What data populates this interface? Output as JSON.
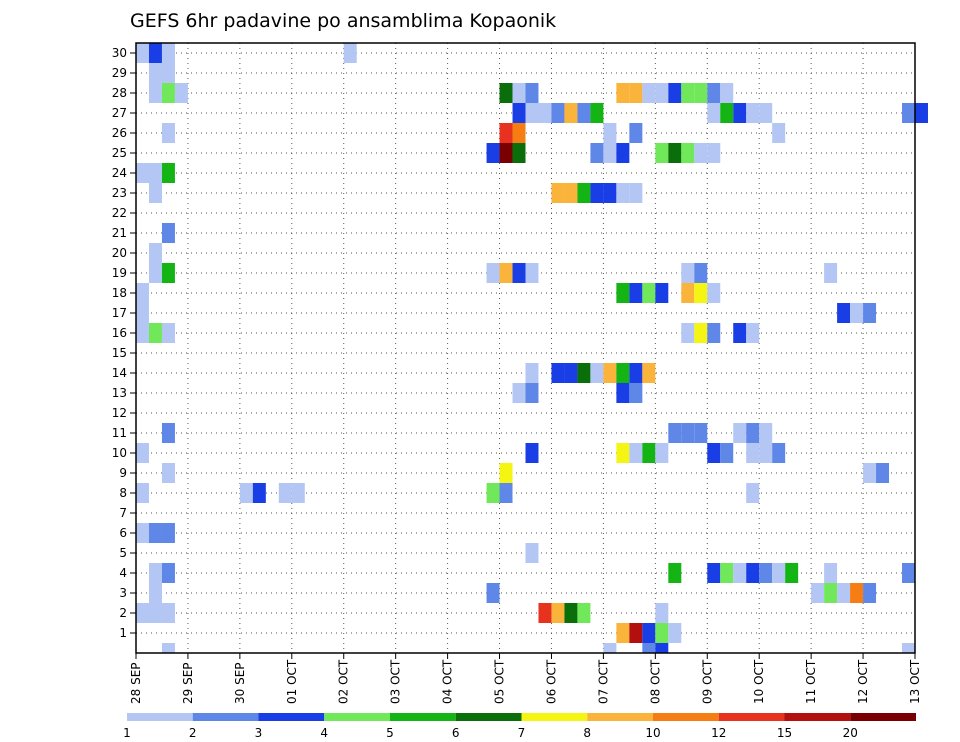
{
  "chart_data": {
    "type": "heatmap",
    "title": "GEFS 6hr padavine po ansamblima Kopaonik",
    "xlabel": "",
    "ylabel": "",
    "x_tick_labels": [
      "28 SEP",
      "29 SEP",
      "30 SEP",
      "01 OCT",
      "02 OCT",
      "03 OCT",
      "04 OCT",
      "05 OCT",
      "06 OCT",
      "07 OCT",
      "08 OCT",
      "09 OCT",
      "10 OCT",
      "11 OCT",
      "12 OCT",
      "13 OCT"
    ],
    "y_tick_labels": [
      "1",
      "2",
      "3",
      "4",
      "5",
      "6",
      "7",
      "8",
      "9",
      "10",
      "11",
      "12",
      "13",
      "14",
      "15",
      "16",
      "17",
      "18",
      "19",
      "20",
      "21",
      "22",
      "23",
      "24",
      "25",
      "26",
      "27",
      "28",
      "29",
      "30"
    ],
    "ylim": [
      0,
      30
    ],
    "x_range_days": [
      0,
      15
    ],
    "grid": true,
    "legend_position": "bottom",
    "levels": [
      "1",
      "2",
      "3",
      "4",
      "5",
      "6",
      "7",
      "8",
      "10",
      "12",
      "15",
      "20"
    ],
    "colors": [
      "#b4c6f4",
      "#5f87e8",
      "#1a3ee6",
      "#70e85a",
      "#14b414",
      "#0a6e0a",
      "#f5f514",
      "#fab43c",
      "#f57d14",
      "#e6321e",
      "#b40f0f",
      "#780000"
    ],
    "cells": [
      {
        "m": 30,
        "s": 0,
        "c": 1
      },
      {
        "m": 30,
        "s": 1,
        "c": 3
      },
      {
        "m": 30,
        "s": 2,
        "c": 1
      },
      {
        "m": 30,
        "s": 16,
        "c": 1
      },
      {
        "m": 29,
        "s": 1,
        "c": 1
      },
      {
        "m": 29,
        "s": 2,
        "c": 1
      },
      {
        "m": 28,
        "s": 1,
        "c": 1
      },
      {
        "m": 28,
        "s": 2,
        "c": 4
      },
      {
        "m": 28,
        "s": 3,
        "c": 1
      },
      {
        "m": 28,
        "s": 28,
        "c": 6
      },
      {
        "m": 28,
        "s": 29,
        "c": 1
      },
      {
        "m": 28,
        "s": 30,
        "c": 2
      },
      {
        "m": 28,
        "s": 37,
        "c": 8
      },
      {
        "m": 28,
        "s": 38,
        "c": 8
      },
      {
        "m": 28,
        "s": 39,
        "c": 1
      },
      {
        "m": 28,
        "s": 40,
        "c": 1
      },
      {
        "m": 28,
        "s": 41,
        "c": 3
      },
      {
        "m": 28,
        "s": 42,
        "c": 4
      },
      {
        "m": 28,
        "s": 43,
        "c": 4
      },
      {
        "m": 28,
        "s": 44,
        "c": 2
      },
      {
        "m": 28,
        "s": 45,
        "c": 1
      },
      {
        "m": 27,
        "s": 29,
        "c": 3
      },
      {
        "m": 27,
        "s": 30,
        "c": 1
      },
      {
        "m": 27,
        "s": 31,
        "c": 1
      },
      {
        "m": 27,
        "s": 32,
        "c": 2
      },
      {
        "m": 27,
        "s": 33,
        "c": 8
      },
      {
        "m": 27,
        "s": 34,
        "c": 2
      },
      {
        "m": 27,
        "s": 35,
        "c": 5
      },
      {
        "m": 27,
        "s": 44,
        "c": 1
      },
      {
        "m": 27,
        "s": 45,
        "c": 5
      },
      {
        "m": 27,
        "s": 46,
        "c": 3
      },
      {
        "m": 27,
        "s": 47,
        "c": 1
      },
      {
        "m": 27,
        "s": 48,
        "c": 1
      },
      {
        "m": 27,
        "s": 59,
        "c": 2
      },
      {
        "m": 27,
        "s": 60,
        "c": 3
      },
      {
        "m": 26,
        "s": 2,
        "c": 1
      },
      {
        "m": 26,
        "s": 28,
        "c": 10
      },
      {
        "m": 26,
        "s": 29,
        "c": 9
      },
      {
        "m": 26,
        "s": 36,
        "c": 1
      },
      {
        "m": 26,
        "s": 38,
        "c": 2
      },
      {
        "m": 26,
        "s": 49,
        "c": 1
      },
      {
        "m": 25,
        "s": 27,
        "c": 3
      },
      {
        "m": 25,
        "s": 28,
        "c": 12
      },
      {
        "m": 25,
        "s": 29,
        "c": 6
      },
      {
        "m": 25,
        "s": 35,
        "c": 2
      },
      {
        "m": 25,
        "s": 36,
        "c": 1
      },
      {
        "m": 25,
        "s": 37,
        "c": 3
      },
      {
        "m": 25,
        "s": 40,
        "c": 4
      },
      {
        "m": 25,
        "s": 41,
        "c": 6
      },
      {
        "m": 25,
        "s": 42,
        "c": 4
      },
      {
        "m": 25,
        "s": 43,
        "c": 1
      },
      {
        "m": 25,
        "s": 44,
        "c": 1
      },
      {
        "m": 24,
        "s": 0,
        "c": 1
      },
      {
        "m": 24,
        "s": 1,
        "c": 1
      },
      {
        "m": 24,
        "s": 2,
        "c": 5
      },
      {
        "m": 23,
        "s": 1,
        "c": 1
      },
      {
        "m": 23,
        "s": 32,
        "c": 8
      },
      {
        "m": 23,
        "s": 33,
        "c": 8
      },
      {
        "m": 23,
        "s": 34,
        "c": 5
      },
      {
        "m": 23,
        "s": 35,
        "c": 3
      },
      {
        "m": 23,
        "s": 36,
        "c": 3
      },
      {
        "m": 23,
        "s": 37,
        "c": 1
      },
      {
        "m": 23,
        "s": 38,
        "c": 1
      },
      {
        "m": 21,
        "s": 2,
        "c": 2
      },
      {
        "m": 20,
        "s": 1,
        "c": 1
      },
      {
        "m": 19,
        "s": 1,
        "c": 1
      },
      {
        "m": 19,
        "s": 2,
        "c": 5
      },
      {
        "m": 19,
        "s": 27,
        "c": 1
      },
      {
        "m": 19,
        "s": 28,
        "c": 8
      },
      {
        "m": 19,
        "s": 29,
        "c": 3
      },
      {
        "m": 19,
        "s": 30,
        "c": 1
      },
      {
        "m": 19,
        "s": 42,
        "c": 1
      },
      {
        "m": 19,
        "s": 43,
        "c": 2
      },
      {
        "m": 19,
        "s": 53,
        "c": 1
      },
      {
        "m": 18,
        "s": 0,
        "c": 1
      },
      {
        "m": 18,
        "s": 37,
        "c": 5
      },
      {
        "m": 18,
        "s": 38,
        "c": 3
      },
      {
        "m": 18,
        "s": 39,
        "c": 4
      },
      {
        "m": 18,
        "s": 40,
        "c": 3
      },
      {
        "m": 18,
        "s": 42,
        "c": 8
      },
      {
        "m": 18,
        "s": 43,
        "c": 7
      },
      {
        "m": 18,
        "s": 44,
        "c": 1
      },
      {
        "m": 17,
        "s": 0,
        "c": 1
      },
      {
        "m": 17,
        "s": 54,
        "c": 3
      },
      {
        "m": 17,
        "s": 55,
        "c": 1
      },
      {
        "m": 17,
        "s": 56,
        "c": 2
      },
      {
        "m": 16,
        "s": 0,
        "c": 1
      },
      {
        "m": 16,
        "s": 1,
        "c": 4
      },
      {
        "m": 16,
        "s": 2,
        "c": 1
      },
      {
        "m": 16,
        "s": 42,
        "c": 1
      },
      {
        "m": 16,
        "s": 43,
        "c": 7
      },
      {
        "m": 16,
        "s": 44,
        "c": 2
      },
      {
        "m": 16,
        "s": 46,
        "c": 3
      },
      {
        "m": 16,
        "s": 47,
        "c": 1
      },
      {
        "m": 14,
        "s": 30,
        "c": 1
      },
      {
        "m": 14,
        "s": 32,
        "c": 3
      },
      {
        "m": 14,
        "s": 33,
        "c": 3
      },
      {
        "m": 14,
        "s": 34,
        "c": 6
      },
      {
        "m": 14,
        "s": 35,
        "c": 1
      },
      {
        "m": 14,
        "s": 36,
        "c": 8
      },
      {
        "m": 14,
        "s": 37,
        "c": 5
      },
      {
        "m": 14,
        "s": 38,
        "c": 3
      },
      {
        "m": 14,
        "s": 39,
        "c": 8
      },
      {
        "m": 13,
        "s": 29,
        "c": 1
      },
      {
        "m": 13,
        "s": 30,
        "c": 2
      },
      {
        "m": 13,
        "s": 37,
        "c": 3
      },
      {
        "m": 13,
        "s": 38,
        "c": 2
      },
      {
        "m": 11,
        "s": 2,
        "c": 2
      },
      {
        "m": 11,
        "s": 41,
        "c": 2
      },
      {
        "m": 11,
        "s": 42,
        "c": 2
      },
      {
        "m": 11,
        "s": 43,
        "c": 2
      },
      {
        "m": 11,
        "s": 46,
        "c": 1
      },
      {
        "m": 11,
        "s": 47,
        "c": 2
      },
      {
        "m": 11,
        "s": 48,
        "c": 1
      },
      {
        "m": 10,
        "s": 0,
        "c": 1
      },
      {
        "m": 10,
        "s": 30,
        "c": 3
      },
      {
        "m": 10,
        "s": 37,
        "c": 7
      },
      {
        "m": 10,
        "s": 38,
        "c": 1
      },
      {
        "m": 10,
        "s": 39,
        "c": 5
      },
      {
        "m": 10,
        "s": 40,
        "c": 1
      },
      {
        "m": 10,
        "s": 44,
        "c": 3
      },
      {
        "m": 10,
        "s": 45,
        "c": 2
      },
      {
        "m": 10,
        "s": 47,
        "c": 1
      },
      {
        "m": 10,
        "s": 48,
        "c": 1
      },
      {
        "m": 10,
        "s": 49,
        "c": 2
      },
      {
        "m": 9,
        "s": 2,
        "c": 1
      },
      {
        "m": 9,
        "s": 28,
        "c": 7
      },
      {
        "m": 9,
        "s": 56,
        "c": 1
      },
      {
        "m": 9,
        "s": 57,
        "c": 2
      },
      {
        "m": 8,
        "s": 0,
        "c": 1
      },
      {
        "m": 8,
        "s": 8,
        "c": 1
      },
      {
        "m": 8,
        "s": 9,
        "c": 3
      },
      {
        "m": 8,
        "s": 11,
        "c": 1
      },
      {
        "m": 8,
        "s": 12,
        "c": 1
      },
      {
        "m": 8,
        "s": 27,
        "c": 4
      },
      {
        "m": 8,
        "s": 28,
        "c": 2
      },
      {
        "m": 8,
        "s": 47,
        "c": 1
      },
      {
        "m": 6,
        "s": 0,
        "c": 1
      },
      {
        "m": 6,
        "s": 1,
        "c": 2
      },
      {
        "m": 6,
        "s": 2,
        "c": 2
      },
      {
        "m": 5,
        "s": 30,
        "c": 1
      },
      {
        "m": 4,
        "s": 1,
        "c": 1
      },
      {
        "m": 4,
        "s": 2,
        "c": 2
      },
      {
        "m": 4,
        "s": 41,
        "c": 5
      },
      {
        "m": 4,
        "s": 44,
        "c": 3
      },
      {
        "m": 4,
        "s": 45,
        "c": 4
      },
      {
        "m": 4,
        "s": 46,
        "c": 1
      },
      {
        "m": 4,
        "s": 47,
        "c": 3
      },
      {
        "m": 4,
        "s": 48,
        "c": 2
      },
      {
        "m": 4,
        "s": 49,
        "c": 1
      },
      {
        "m": 4,
        "s": 50,
        "c": 5
      },
      {
        "m": 4,
        "s": 53,
        "c": 1
      },
      {
        "m": 4,
        "s": 59,
        "c": 2
      },
      {
        "m": 3,
        "s": 1,
        "c": 1
      },
      {
        "m": 3,
        "s": 27,
        "c": 2
      },
      {
        "m": 3,
        "s": 52,
        "c": 1
      },
      {
        "m": 3,
        "s": 53,
        "c": 4
      },
      {
        "m": 3,
        "s": 54,
        "c": 1
      },
      {
        "m": 3,
        "s": 55,
        "c": 9
      },
      {
        "m": 3,
        "s": 56,
        "c": 2
      },
      {
        "m": 2,
        "s": 0,
        "c": 1
      },
      {
        "m": 2,
        "s": 1,
        "c": 1
      },
      {
        "m": 2,
        "s": 2,
        "c": 1
      },
      {
        "m": 2,
        "s": 31,
        "c": 10
      },
      {
        "m": 2,
        "s": 32,
        "c": 8
      },
      {
        "m": 2,
        "s": 33,
        "c": 6
      },
      {
        "m": 2,
        "s": 34,
        "c": 4
      },
      {
        "m": 2,
        "s": 40,
        "c": 1
      },
      {
        "m": 1,
        "s": 37,
        "c": 8
      },
      {
        "m": 1,
        "s": 38,
        "c": 11
      },
      {
        "m": 1,
        "s": 39,
        "c": 3
      },
      {
        "m": 1,
        "s": 40,
        "c": 4
      },
      {
        "m": 1,
        "s": 41,
        "c": 1
      },
      {
        "m": 0,
        "s": 2,
        "c": 1
      },
      {
        "m": 0,
        "s": 36,
        "c": 1
      },
      {
        "m": 0,
        "s": 39,
        "c": 2
      },
      {
        "m": 0,
        "s": 40,
        "c": 3
      },
      {
        "m": 0,
        "s": 59,
        "c": 1
      }
    ]
  }
}
